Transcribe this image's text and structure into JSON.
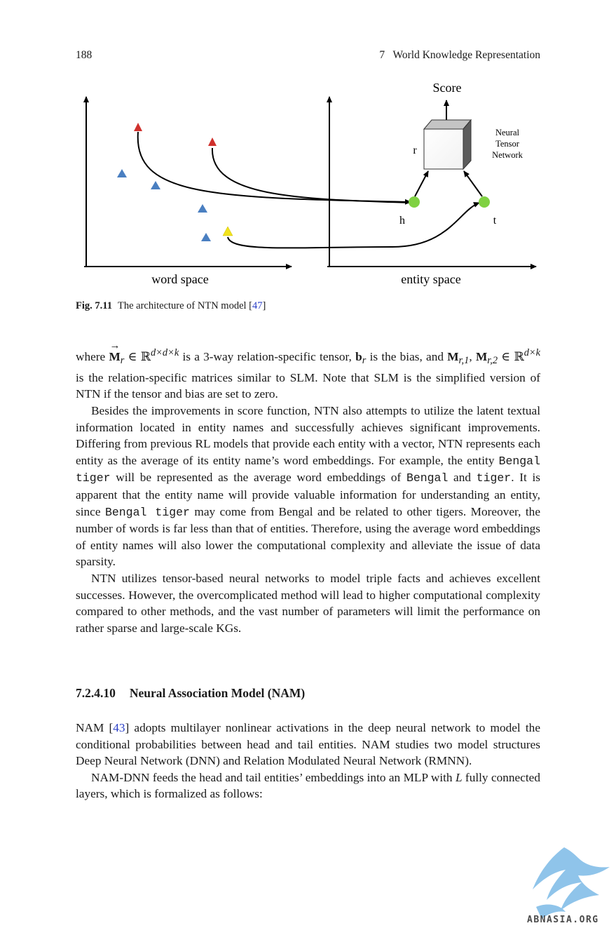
{
  "header": {
    "page_number": "188",
    "running_title": "7   World Knowledge Representation"
  },
  "figure": {
    "labels": {
      "score": "Score",
      "r": "r",
      "h": "h",
      "t": "t",
      "ntn_line1": "Neural",
      "ntn_line2": "Tensor",
      "ntn_line3": "Network",
      "word_space": "word space",
      "entity_space": "entity space"
    },
    "colors": {
      "red": "#d0312d",
      "blue": "#4a7fc1",
      "yellow": "#f2e31c",
      "green": "#7fd142"
    }
  },
  "caption": {
    "label": "Fig. 7.11",
    "text": "The architecture of NTN model [",
    "ref": "47",
    "close": "]"
  },
  "para1": {
    "t1": "where ",
    "M": "M",
    "r": "r",
    "in1": " ∈ ℝ",
    "sup1": "d×d×k",
    "t2": " is a 3-way relation-specific tensor, ",
    "b": "b",
    "br": "r",
    "t3": " is the bias, and ",
    "M2": "M",
    "r1": "r,1",
    "t4": ",",
    "M3": "M",
    "r2": "r,2",
    "in2": " ∈ ℝ",
    "sup2": "d×k",
    "t5": " is the relation-specific matrices similar to SLM. Note that SLM is the simplified version of NTN if the tensor and bias are set to zero."
  },
  "para2": {
    "t1": "Besides the improvements in score function, NTN also attempts to utilize the latent textual information located in entity names and successfully achieves significant improvements. Differing from previous RL models that provide each entity with a vector, NTN represents each entity as the average of its entity name’s word embeddings. For example, the entity ",
    "m1": "Bengal tiger",
    "t2": " will be represented as the average word embeddings of ",
    "m2": "Bengal",
    "t3": " and ",
    "m3": "tiger",
    "t4": ". It is apparent that the entity name will provide valuable information for understanding an entity, since ",
    "m4": "Bengal tiger",
    "t5": " may come from Bengal and be related to other tigers. Moreover, the number of words is far less than that of entities. Therefore, using the average word embeddings of entity names will also lower the computational complexity and alleviate the issue of data sparsity."
  },
  "para3": "NTN utilizes tensor-based neural networks to model triple facts and achieves excellent successes. However, the overcomplicated method will lead to higher computational complexity compared to other methods, and the vast number of parameters will limit the performance on rather sparse and large-scale KGs.",
  "section": {
    "number": "7.2.4.10",
    "title": "Neural Association Model (NAM)"
  },
  "para4": {
    "t1": "NAM [",
    "ref": "43",
    "t2": "] adopts multilayer nonlinear activations in the deep neural network to model the conditional probabilities between head and tail entities. NAM studies two model structures Deep Neural Network (DNN) and Relation Modulated Neural Network (RMNN)."
  },
  "para5": {
    "t1": "NAM-DNN feeds the head and tail entities’ embeddings into an MLP with ",
    "L": "L",
    "t2": " fully connected layers, which is formalized as follows:"
  },
  "watermark": {
    "text": "ABNASIA.ORG"
  }
}
